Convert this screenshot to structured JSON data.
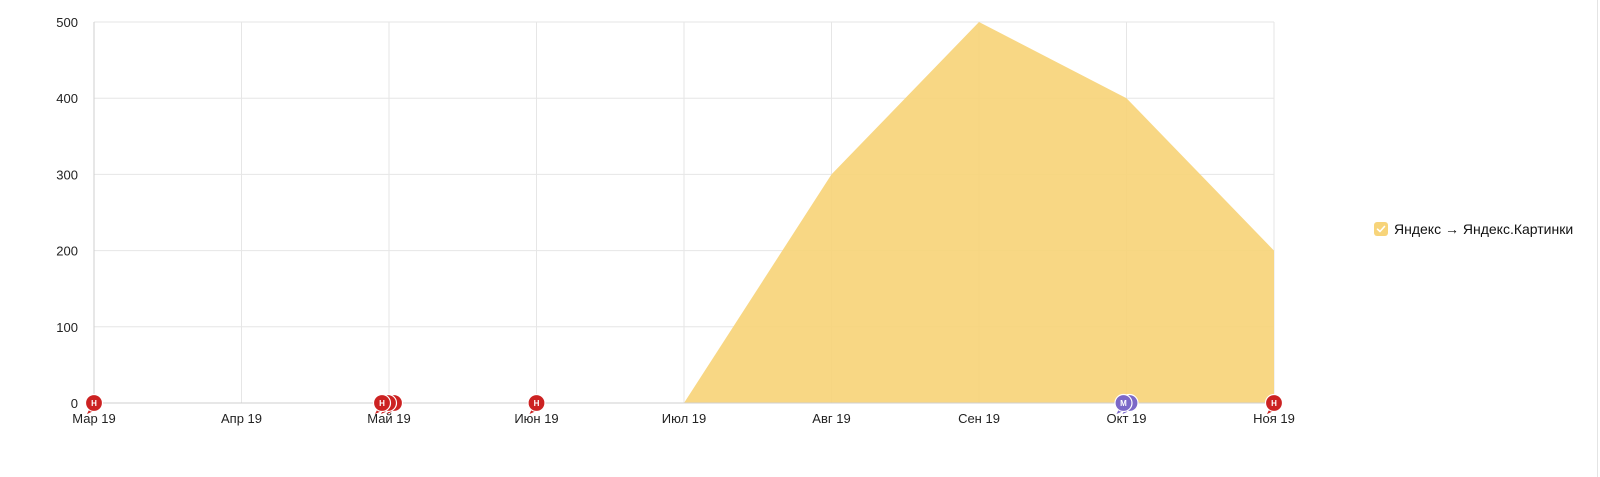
{
  "chart_data": {
    "type": "area",
    "categories": [
      "Мар 19",
      "Апр 19",
      "Май 19",
      "Июн 19",
      "Июл 19",
      "Авг 19",
      "Сен 19",
      "Окт 19",
      "Ноя 19"
    ],
    "series": [
      {
        "name": "Яндекс → Яндекс.Картинки",
        "values": [
          null,
          null,
          null,
          null,
          0,
          300,
          500,
          400,
          200
        ],
        "color": "#f7d47a"
      }
    ],
    "ylim": [
      0,
      500
    ],
    "yticks": [
      0,
      100,
      200,
      300,
      400,
      500
    ],
    "grid": true,
    "legend_position": "right",
    "annotations": [
      {
        "date": "Мар 19",
        "letter": "Н",
        "count": 1,
        "color": "#cc2222"
      },
      {
        "date": "Май 19",
        "letter": "Н",
        "count": 3,
        "color": "#cc2222"
      },
      {
        "date": "Июн 19",
        "letter": "Н",
        "count": 1,
        "color": "#cc2222"
      },
      {
        "date": "Окт 19",
        "letter": "М",
        "count": 2,
        "color": "#7b68c8"
      },
      {
        "date": "Ноя 19",
        "letter": "Н",
        "count": 1,
        "color": "#cc2222"
      }
    ]
  },
  "legend": {
    "label": "Яндекс → Яндекс.Картинки",
    "checked": true,
    "check_icon": "checkmark-icon",
    "color": "#f7d47a"
  }
}
